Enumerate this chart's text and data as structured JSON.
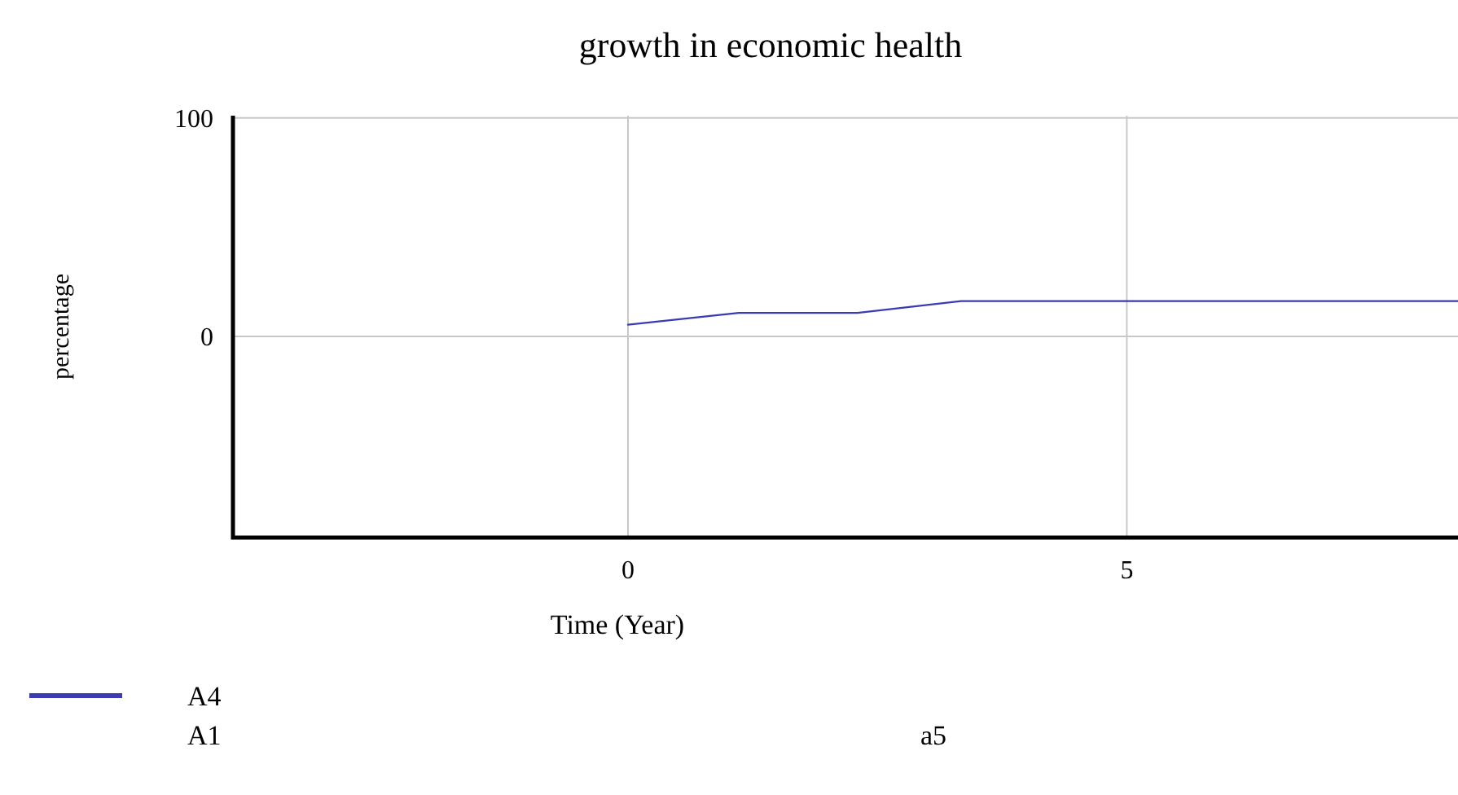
{
  "chart_data": {
    "type": "line",
    "title": "growth in economic health",
    "xlabel": "Time (Year)",
    "ylabel": "percentage",
    "xlim": [
      -3.96,
      8.32
    ],
    "ylim": [
      -92,
      101
    ],
    "xticks": [
      0,
      5
    ],
    "yticks": [
      0,
      100
    ],
    "grid": true,
    "legend": "bottom left",
    "series": [
      {
        "name": "A4",
        "color": "#3b3bb3",
        "x": [
          0,
          1.11,
          2.3,
          3.34,
          8.32
        ],
        "values": [
          5.4,
          10.8,
          10.8,
          16.2,
          16.2
        ]
      }
    ],
    "annotations": [
      "A1",
      "a5"
    ]
  }
}
